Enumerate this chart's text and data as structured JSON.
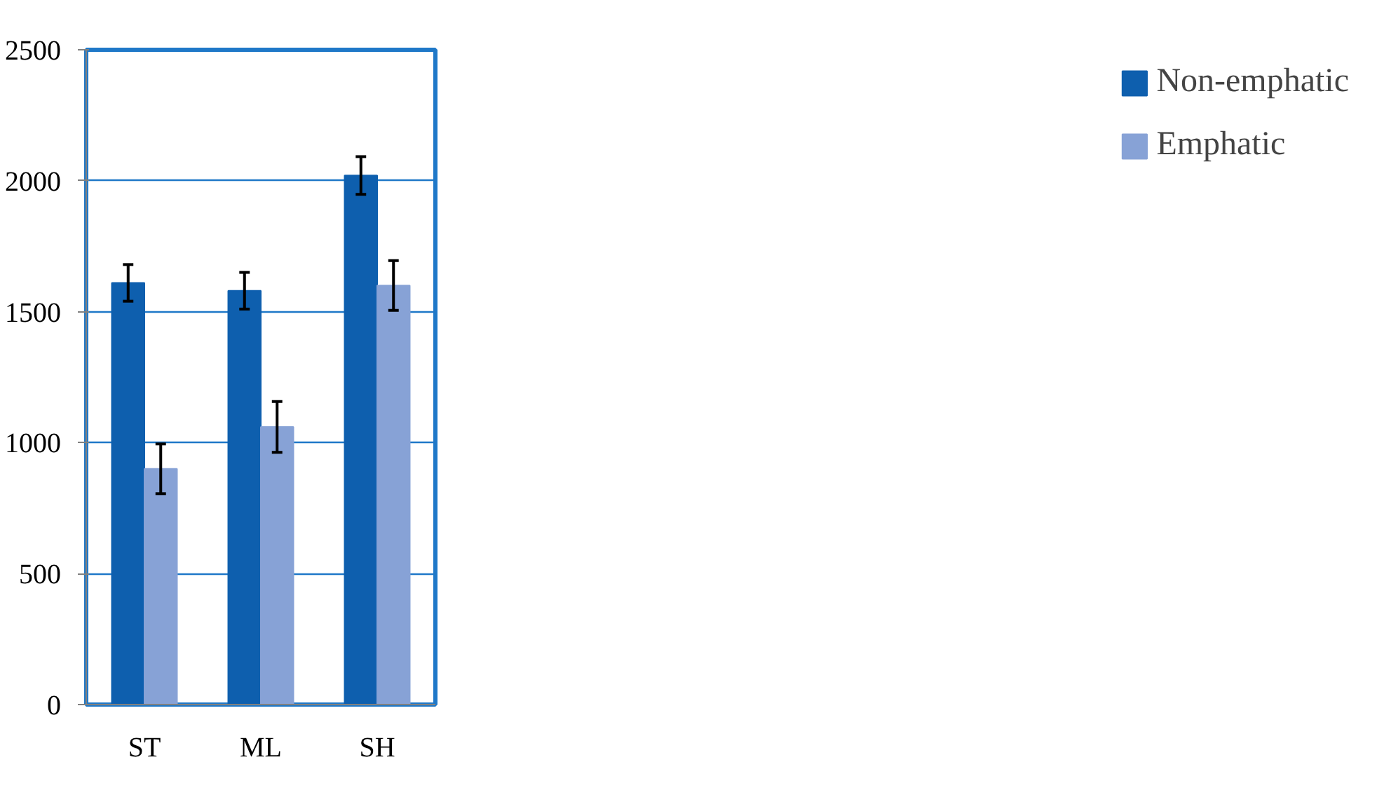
{
  "chart_data": {
    "type": "bar",
    "categories": [
      "ST",
      "ML",
      "SH"
    ],
    "series": [
      {
        "name": "Non-emphatic",
        "color": "#0e5fae",
        "values": [
          1610,
          1580,
          2020
        ],
        "errors": [
          70,
          70,
          72
        ]
      },
      {
        "name": "Emphatic",
        "color": "#87a2d6",
        "values": [
          900,
          1060,
          1600
        ],
        "errors": [
          95,
          97,
          95
        ]
      }
    ],
    "ylim": [
      0,
      2500
    ],
    "yticks": [
      0,
      500,
      1000,
      1500,
      2000,
      2500
    ],
    "grid": "y",
    "legend": "right"
  }
}
